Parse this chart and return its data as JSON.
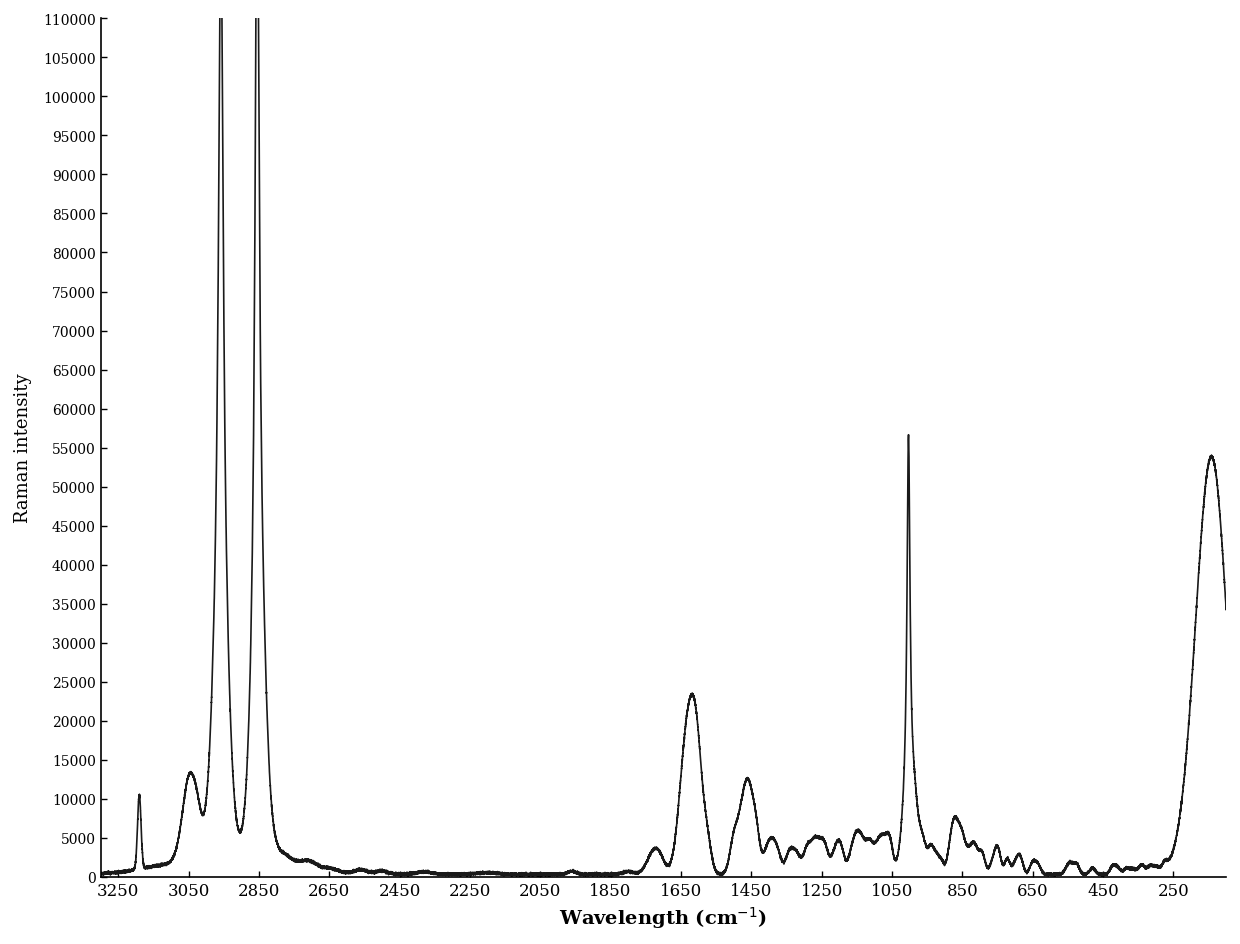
{
  "ylabel": "Raman intensity",
  "xlabel_text": "Wavelength (cm$^{-1}$)",
  "xlim": [
    3300,
    100
  ],
  "ylim": [
    0,
    110000
  ],
  "yticks": [
    0,
    5000,
    10000,
    15000,
    20000,
    25000,
    30000,
    35000,
    40000,
    45000,
    50000,
    55000,
    60000,
    65000,
    70000,
    75000,
    80000,
    85000,
    90000,
    95000,
    100000,
    105000,
    110000
  ],
  "xticks": [
    3250,
    3050,
    2850,
    2650,
    2450,
    2250,
    2050,
    1850,
    1650,
    1450,
    1250,
    1050,
    850,
    650,
    450,
    250
  ],
  "line_color": "#1a1a1a",
  "line_width": 1.2,
  "background_color": "#ffffff"
}
